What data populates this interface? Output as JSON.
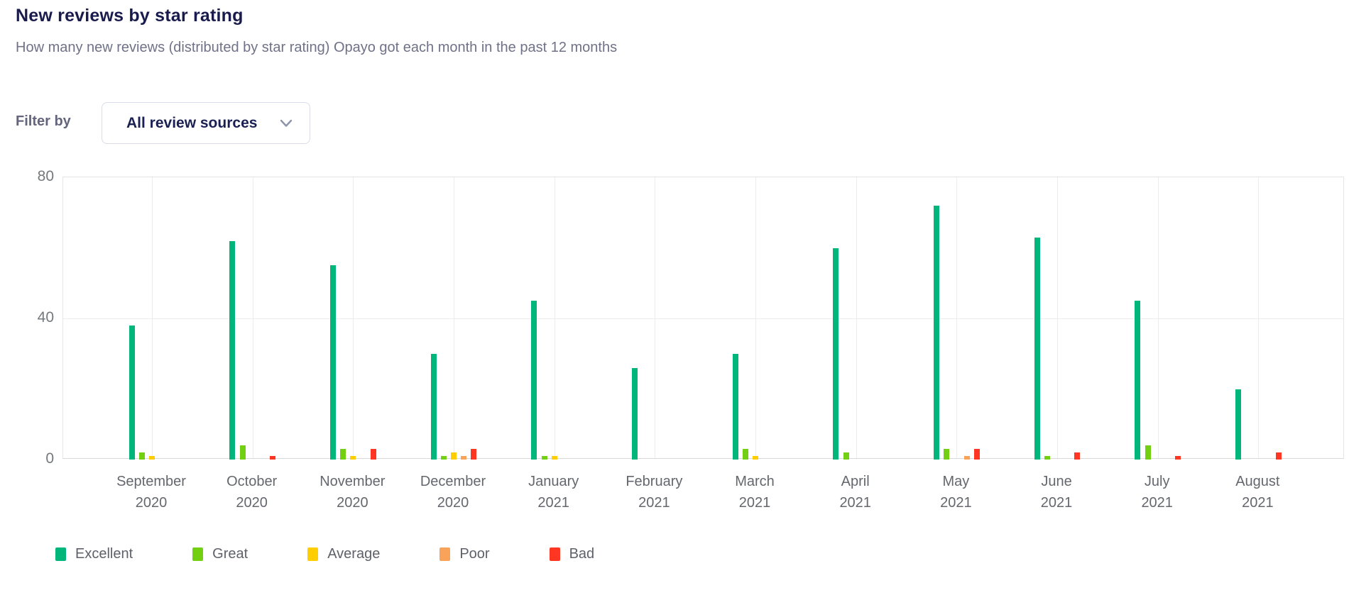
{
  "header": {
    "title": "New reviews by star rating",
    "subtitle": "How many new reviews (distributed by star rating) Opayo got each month in the past 12 months"
  },
  "filter": {
    "label": "Filter by",
    "dropdown_value": "All review sources",
    "chevron_icon": "chevron-down"
  },
  "chart_data": {
    "type": "bar",
    "title": "New reviews by star rating",
    "categories": [
      {
        "month": "September",
        "year": "2020"
      },
      {
        "month": "October",
        "year": "2020"
      },
      {
        "month": "November",
        "year": "2020"
      },
      {
        "month": "December",
        "year": "2020"
      },
      {
        "month": "January",
        "year": "2021"
      },
      {
        "month": "February",
        "year": "2021"
      },
      {
        "month": "March",
        "year": "2021"
      },
      {
        "month": "April",
        "year": "2021"
      },
      {
        "month": "May",
        "year": "2021"
      },
      {
        "month": "June",
        "year": "2021"
      },
      {
        "month": "July",
        "year": "2021"
      },
      {
        "month": "August",
        "year": "2021"
      }
    ],
    "series": [
      {
        "name": "Excellent",
        "color": "#00b67a",
        "values": [
          38,
          62,
          55,
          30,
          45,
          26,
          30,
          60,
          72,
          63,
          45,
          20
        ]
      },
      {
        "name": "Great",
        "color": "#73cf11",
        "values": [
          2,
          4,
          3,
          1,
          1,
          0,
          3,
          2,
          3,
          1,
          4,
          0
        ]
      },
      {
        "name": "Average",
        "color": "#ffce00",
        "values": [
          1,
          0,
          1,
          2,
          1,
          0,
          1,
          0,
          0,
          0,
          0,
          0
        ]
      },
      {
        "name": "Poor",
        "color": "#f8a25a",
        "values": [
          0,
          0,
          0,
          1,
          0,
          0,
          0,
          0,
          1,
          0,
          0,
          0
        ]
      },
      {
        "name": "Bad",
        "color": "#ff3722",
        "values": [
          0,
          1,
          3,
          3,
          0,
          0,
          0,
          0,
          3,
          2,
          1,
          2
        ]
      }
    ],
    "ylim": [
      0,
      80
    ],
    "yticks": [
      "0",
      "40",
      "80"
    ],
    "xlabel": "",
    "ylabel": "",
    "grid": true,
    "legend_position": "bottom"
  }
}
